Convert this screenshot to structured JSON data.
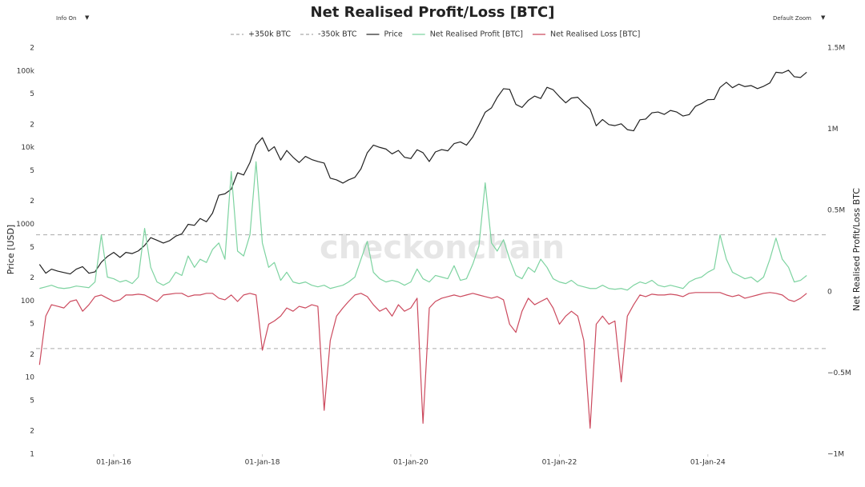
{
  "chart_data": {
    "type": "line",
    "title": "Net Realised Profit/Loss [BTC]",
    "controls": {
      "info": "Info On",
      "info_arrow": "▼",
      "zoom": "Default Zoom",
      "zoom_arrow": "▼"
    },
    "watermark": "checkonchain",
    "y_label": "Price [USD]",
    "y2_label": "Net Realised Profit/Loss BTC",
    "log_y": true,
    "grid": false,
    "legend": "top",
    "xlim": [
      "2014-12-15",
      "2025-05-20"
    ],
    "xticks": [
      {
        "value": "2016-01-01",
        "label": "01-Jan-16"
      },
      {
        "value": "2018-01-01",
        "label": "01-Jan-18"
      },
      {
        "value": "2020-01-01",
        "label": "01-Jan-20"
      },
      {
        "value": "2022-01-01",
        "label": "01-Jan-22"
      },
      {
        "value": "2024-01-01",
        "label": "01-Jan-24"
      }
    ],
    "ylim": [
      1,
      200000
    ],
    "yticks": [
      1,
      2,
      5,
      10,
      {
        "value": 20,
        "label": "2"
      },
      {
        "value": 50,
        "label": "5"
      },
      100,
      {
        "value": 200,
        "label": "2"
      },
      {
        "value": 500,
        "label": "5"
      },
      1000,
      {
        "value": 2000,
        "label": "2"
      },
      {
        "value": 5000,
        "label": "5"
      },
      {
        "value": 10000,
        "label": "10k"
      },
      {
        "value": 20000,
        "label": "2"
      },
      {
        "value": 50000,
        "label": "5"
      },
      {
        "value": 100000,
        "label": "100k"
      },
      {
        "value": 200000,
        "label": "2"
      }
    ],
    "y2lim": [
      -1000000,
      1500000
    ],
    "y2ticks": [
      {
        "value": 1500000,
        "label": "1.5M"
      },
      {
        "value": 1000000,
        "label": "1M"
      },
      {
        "value": 500000,
        "label": "0.5M"
      },
      0,
      {
        "value": -500000,
        "label": "−0.5M"
      },
      {
        "value": -1000000,
        "label": "−1M"
      }
    ],
    "reference_lines": [
      {
        "name": "+350k BTC",
        "value": 350000,
        "color": "#aaaaaa"
      },
      {
        "name": "-350k BTC",
        "value": -350000,
        "color": "#aaaaaa"
      }
    ],
    "x": [
      "2015-01-01",
      "2015-02-01",
      "2015-03-01",
      "2015-04-01",
      "2015-05-01",
      "2015-06-01",
      "2015-07-01",
      "2015-08-01",
      "2015-09-01",
      "2015-10-01",
      "2015-11-01",
      "2015-12-01",
      "2016-01-01",
      "2016-02-01",
      "2016-03-01",
      "2016-04-01",
      "2016-05-01",
      "2016-06-01",
      "2016-07-01",
      "2016-08-01",
      "2016-09-01",
      "2016-10-01",
      "2016-11-01",
      "2016-12-01",
      "2017-01-01",
      "2017-02-01",
      "2017-03-01",
      "2017-04-01",
      "2017-05-01",
      "2017-06-01",
      "2017-07-01",
      "2017-08-01",
      "2017-09-01",
      "2017-10-01",
      "2017-11-01",
      "2017-12-01",
      "2018-01-01",
      "2018-02-01",
      "2018-03-01",
      "2018-04-01",
      "2018-05-01",
      "2018-06-01",
      "2018-07-01",
      "2018-08-01",
      "2018-09-01",
      "2018-10-01",
      "2018-11-01",
      "2018-12-01",
      "2019-01-01",
      "2019-02-01",
      "2019-03-01",
      "2019-04-01",
      "2019-05-01",
      "2019-06-01",
      "2019-07-01",
      "2019-08-01",
      "2019-09-01",
      "2019-10-01",
      "2019-11-01",
      "2019-12-01",
      "2020-01-01",
      "2020-02-01",
      "2020-03-01",
      "2020-04-01",
      "2020-05-01",
      "2020-06-01",
      "2020-07-01",
      "2020-08-01",
      "2020-09-01",
      "2020-10-01",
      "2020-11-01",
      "2020-12-01",
      "2021-01-01",
      "2021-02-01",
      "2021-03-01",
      "2021-04-01",
      "2021-05-01",
      "2021-06-01",
      "2021-07-01",
      "2021-08-01",
      "2021-09-01",
      "2021-10-01",
      "2021-11-01",
      "2021-12-01",
      "2022-01-01",
      "2022-02-01",
      "2022-03-01",
      "2022-04-01",
      "2022-05-01",
      "2022-06-01",
      "2022-07-01",
      "2022-08-01",
      "2022-09-01",
      "2022-10-01",
      "2022-11-01",
      "2022-12-01",
      "2023-01-01",
      "2023-02-01",
      "2023-03-01",
      "2023-04-01",
      "2023-05-01",
      "2023-06-01",
      "2023-07-01",
      "2023-08-01",
      "2023-09-01",
      "2023-10-01",
      "2023-11-01",
      "2023-12-01",
      "2024-01-01",
      "2024-02-01",
      "2024-03-01",
      "2024-04-01",
      "2024-05-01",
      "2024-06-01",
      "2024-07-01",
      "2024-08-01",
      "2024-09-01",
      "2024-10-01",
      "2024-11-01",
      "2024-12-01",
      "2025-01-01",
      "2025-02-01",
      "2025-03-01",
      "2025-04-01",
      "2025-05-01"
    ],
    "series": [
      {
        "name": "Price",
        "color": "#222222",
        "axis": "y",
        "values": [
          300,
          230,
          260,
          245,
          235,
          225,
          260,
          280,
          230,
          240,
          320,
          380,
          430,
          370,
          430,
          415,
          450,
          530,
          670,
          620,
          570,
          610,
          700,
          750,
          1000,
          970,
          1190,
          1080,
          1400,
          2400,
          2500,
          2870,
          4700,
          4400,
          6400,
          10900,
          13500,
          9000,
          10300,
          6900,
          9200,
          7500,
          6400,
          7700,
          7000,
          6600,
          6300,
          4000,
          3800,
          3450,
          3800,
          4100,
          5300,
          8600,
          10800,
          10100,
          9600,
          8300,
          9200,
          7500,
          7200,
          9400,
          8600,
          6600,
          8800,
          9450,
          9100,
          11300,
          11900,
          10800,
          13800,
          19700,
          29000,
          33100,
          45200,
          58800,
          57700,
          36700,
          33500,
          41500,
          47100,
          43800,
          61300,
          57000,
          46300,
          38500,
          44400,
          45500,
          37700,
          31800,
          19300,
          23300,
          20000,
          19400,
          20500,
          17200,
          16600,
          23100,
          23600,
          28500,
          29200,
          27200,
          30600,
          29200,
          25900,
          27000,
          34700,
          37700,
          42300,
          42600,
          61200,
          71300,
          60600,
          67500,
          62700,
          64600,
          59000,
          63300,
          70000,
          96400,
          94400,
          102400,
          84300,
          82500,
          96500
        ]
      },
      {
        "name": "Net Realised Profit [BTC]",
        "color": "#7dd3a0",
        "axis": "y2",
        "values": [
          20000,
          30000,
          40000,
          25000,
          20000,
          25000,
          35000,
          30000,
          25000,
          60000,
          350000,
          90000,
          80000,
          60000,
          70000,
          50000,
          90000,
          390000,
          150000,
          60000,
          40000,
          60000,
          120000,
          100000,
          220000,
          150000,
          200000,
          180000,
          260000,
          300000,
          200000,
          740000,
          250000,
          220000,
          350000,
          800000,
          300000,
          150000,
          180000,
          70000,
          120000,
          60000,
          50000,
          60000,
          40000,
          30000,
          40000,
          20000,
          30000,
          40000,
          60000,
          90000,
          200000,
          310000,
          120000,
          80000,
          60000,
          70000,
          60000,
          40000,
          60000,
          140000,
          80000,
          60000,
          100000,
          90000,
          80000,
          160000,
          70000,
          80000,
          170000,
          280000,
          670000,
          300000,
          250000,
          320000,
          200000,
          100000,
          80000,
          150000,
          120000,
          200000,
          150000,
          80000,
          60000,
          50000,
          70000,
          40000,
          30000,
          20000,
          20000,
          40000,
          20000,
          15000,
          20000,
          10000,
          40000,
          60000,
          50000,
          70000,
          40000,
          30000,
          40000,
          30000,
          20000,
          60000,
          80000,
          90000,
          120000,
          140000,
          350000,
          200000,
          120000,
          100000,
          80000,
          90000,
          60000,
          90000,
          200000,
          330000,
          200000,
          150000,
          60000,
          70000,
          100000
        ]
      },
      {
        "name": "Net Realised Loss [BTC]",
        "color": "#cc4a5e",
        "axis": "y2",
        "values": [
          -450000,
          -150000,
          -80000,
          -90000,
          -100000,
          -60000,
          -50000,
          -120000,
          -80000,
          -30000,
          -20000,
          -40000,
          -60000,
          -50000,
          -20000,
          -20000,
          -15000,
          -20000,
          -40000,
          -60000,
          -20000,
          -15000,
          -10000,
          -10000,
          -30000,
          -20000,
          -20000,
          -10000,
          -10000,
          -40000,
          -50000,
          -20000,
          -60000,
          -20000,
          -10000,
          -20000,
          -360000,
          -200000,
          -180000,
          -150000,
          -100000,
          -120000,
          -90000,
          -100000,
          -80000,
          -90000,
          -730000,
          -300000,
          -150000,
          -100000,
          -60000,
          -20000,
          -10000,
          -30000,
          -80000,
          -120000,
          -100000,
          -150000,
          -80000,
          -120000,
          -100000,
          -40000,
          -810000,
          -100000,
          -60000,
          -40000,
          -30000,
          -20000,
          -30000,
          -20000,
          -10000,
          -20000,
          -30000,
          -40000,
          -30000,
          -50000,
          -200000,
          -250000,
          -120000,
          -40000,
          -80000,
          -60000,
          -40000,
          -100000,
          -200000,
          -150000,
          -120000,
          -150000,
          -300000,
          -840000,
          -200000,
          -150000,
          -200000,
          -180000,
          -555000,
          -150000,
          -80000,
          -20000,
          -30000,
          -15000,
          -20000,
          -20000,
          -15000,
          -20000,
          -30000,
          -10000,
          -5000,
          -5000,
          -5000,
          -5000,
          -5000,
          -20000,
          -30000,
          -20000,
          -40000,
          -30000,
          -20000,
          -10000,
          -5000,
          -10000,
          -20000,
          -50000,
          -60000,
          -40000,
          -10000
        ]
      }
    ]
  }
}
